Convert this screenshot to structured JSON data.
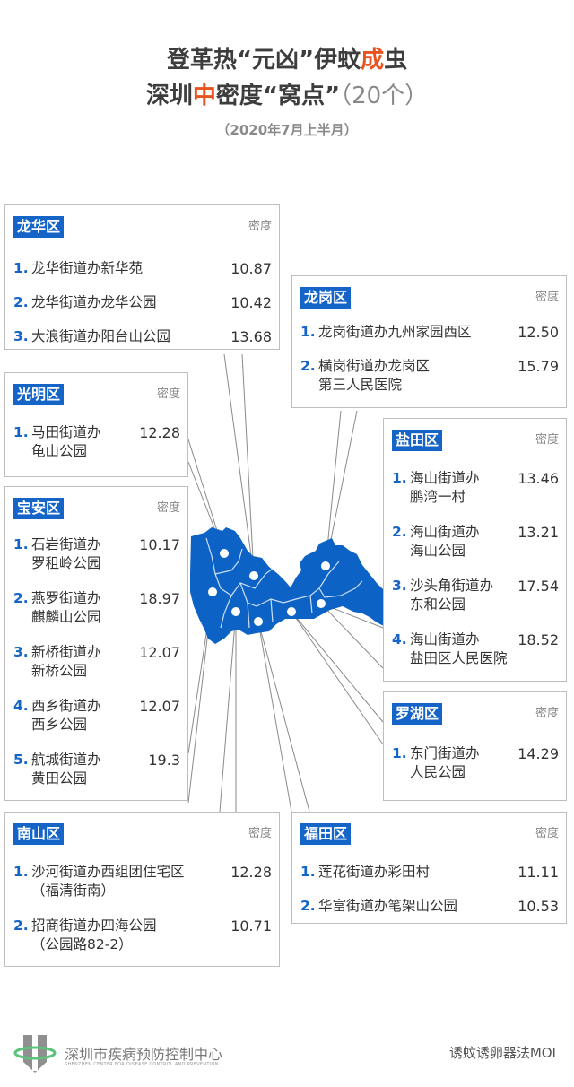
{
  "title": {
    "line1_a": "登革热“元凶”伊蚊",
    "line1_hl": "成",
    "line1_b": "虫",
    "line2_a": "深圳",
    "line2_hl": "中",
    "line2_b": "密度“窝点”",
    "line2_count": "（20个）",
    "subtitle": "（2020年7月上半月）"
  },
  "density_label": "密度",
  "accent_color": "#1565c8",
  "highlight_color": "#e8531e",
  "map_color": "#0d62c6",
  "districts": {
    "longhua": {
      "name": "龙华区",
      "items": [
        {
          "n": "1.",
          "name": "龙华街道办新华苑",
          "v": "10.87"
        },
        {
          "n": "2.",
          "name": "龙华街道办龙华公园",
          "v": "10.42"
        },
        {
          "n": "3.",
          "name": "大浪街道办阳台山公园",
          "v": "13.68"
        }
      ]
    },
    "longgang": {
      "name": "龙岗区",
      "items": [
        {
          "n": "1.",
          "name": "龙岗街道办九州家园西区",
          "v": "12.50"
        },
        {
          "n": "2.",
          "name": "横岗街道办龙岗区\n第三人民医院",
          "v": "15.79"
        }
      ]
    },
    "guangming": {
      "name": "光明区",
      "items": [
        {
          "n": "1.",
          "name": "马田街道办\n龟山公园",
          "v": "12.28"
        }
      ]
    },
    "baoan": {
      "name": "宝安区",
      "items": [
        {
          "n": "1.",
          "name": "石岩街道办\n罗租岭公园",
          "v": "10.17"
        },
        {
          "n": "2.",
          "name": "燕罗街道办\n麒麟山公园",
          "v": "18.97"
        },
        {
          "n": "3.",
          "name": "新桥街道办\n新桥公园",
          "v": "12.07"
        },
        {
          "n": "4.",
          "name": "西乡街道办\n西乡公园",
          "v": "12.07"
        },
        {
          "n": "5.",
          "name": "航城街道办\n黄田公园",
          "v": "19.3"
        }
      ]
    },
    "yantian": {
      "name": "盐田区",
      "items": [
        {
          "n": "1.",
          "name": "海山街道办\n鹏湾一村",
          "v": "13.46"
        },
        {
          "n": "2.",
          "name": "海山街道办\n海山公园",
          "v": "13.21"
        },
        {
          "n": "3.",
          "name": "沙头角街道办\n东和公园",
          "v": "17.54"
        },
        {
          "n": "4.",
          "name": "海山街道办\n盐田区人民医院",
          "v": "18.52"
        }
      ]
    },
    "luohu": {
      "name": "罗湖区",
      "items": [
        {
          "n": "1.",
          "name": "东门街道办\n人民公园",
          "v": "14.29"
        }
      ]
    },
    "nanshan": {
      "name": "南山区",
      "items": [
        {
          "n": "1.",
          "name": "沙河街道办西组团住宅区\n（福清街南）",
          "v": "12.28"
        },
        {
          "n": "2.",
          "name": "招商街道办四海公园\n（公园路82-2）",
          "v": "10.71"
        }
      ]
    },
    "futian": {
      "name": "福田区",
      "items": [
        {
          "n": "1.",
          "name": "莲花街道办彩田村",
          "v": "11.11"
        },
        {
          "n": "2.",
          "name": "华富街道办笔架山公园",
          "v": "10.53"
        }
      ]
    }
  },
  "footer": {
    "org": "深圳市疾病预防控制中心",
    "org_en": "SHENZHEN CENTER FOR DISEASE CONTROL AND PREVENTION",
    "method": "诱蚊诱卵器法MOI"
  }
}
